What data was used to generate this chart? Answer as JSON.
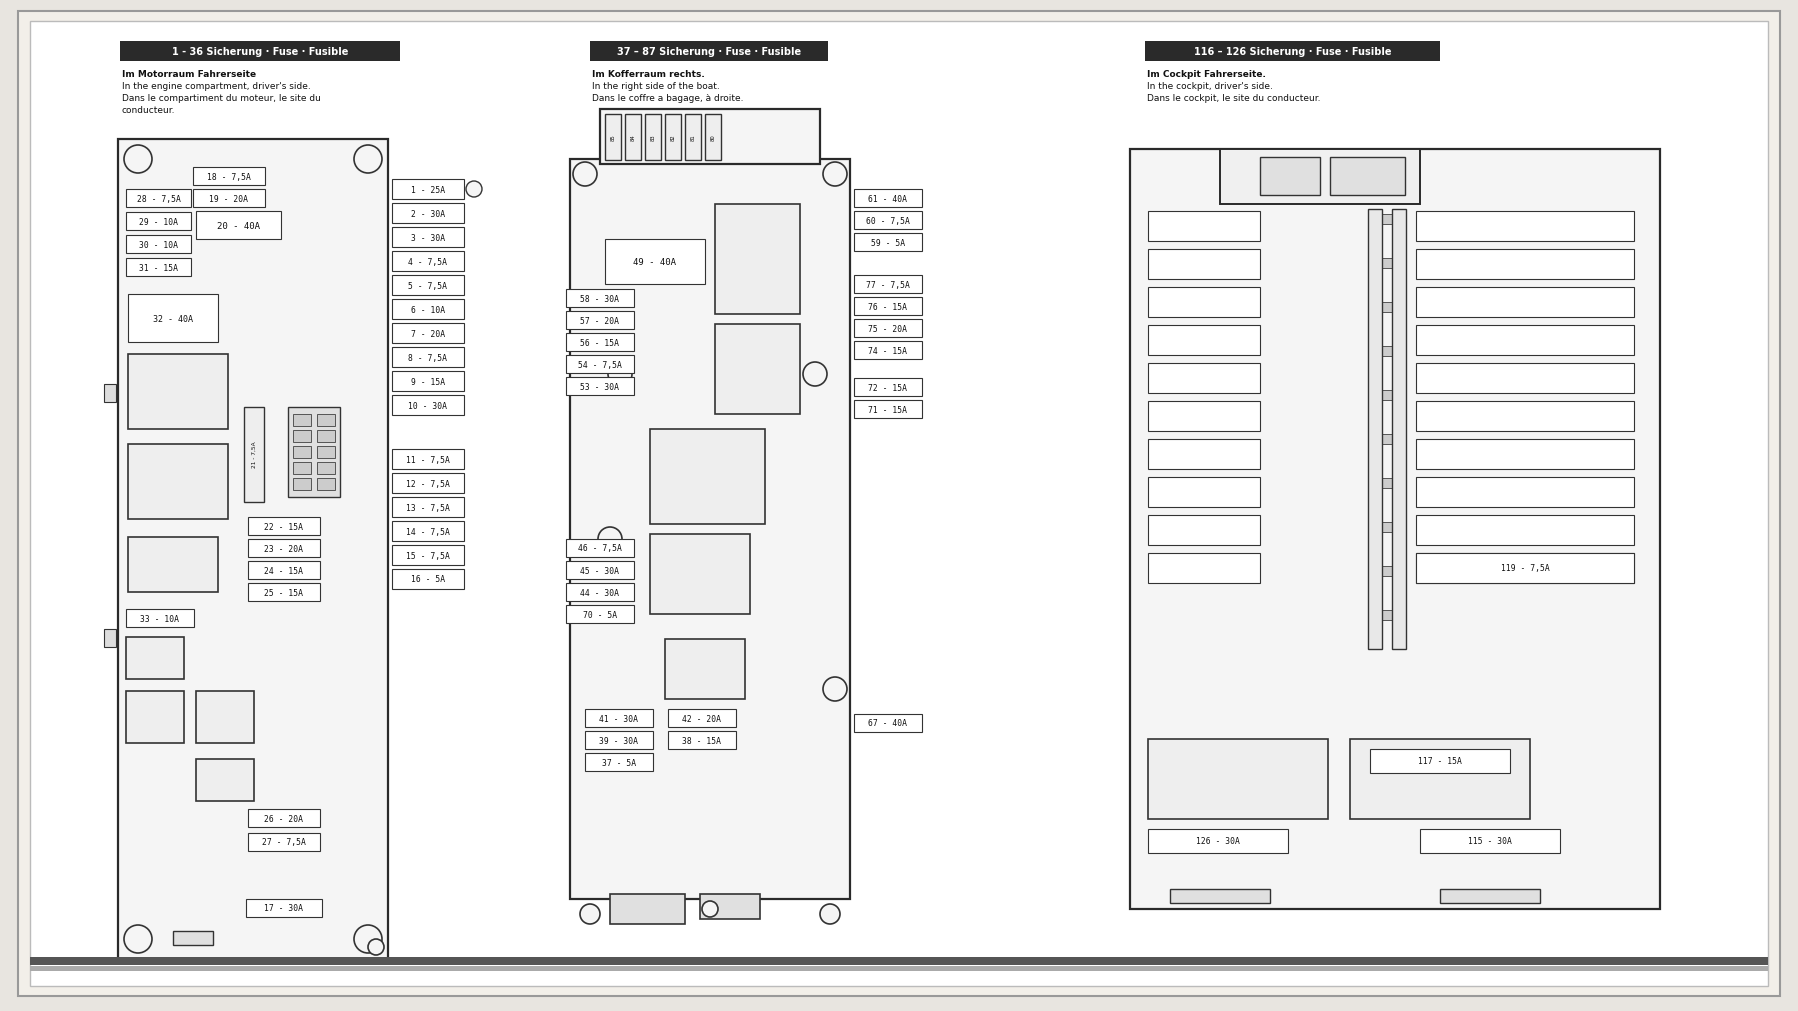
{
  "bg_outer": "#e8e5e0",
  "bg_inner": "#ffffff",
  "header_bg": "#2a2a2a",
  "header_fg": "#ffffff",
  "fuse_fc": "#ffffff",
  "fuse_ec": "#333333",
  "box_ec": "#333333",
  "relay_fc": "#f0f0f0",
  "s1_header": "1 - 36 Sicherung · Fuse · Fusible",
  "s2_header": "37 – 87 Sicherung · Fuse · Fusible",
  "s3_header": "116 – 126 Sicherung · Fuse · Fusible",
  "s1_line1": "Im Motorraum Fahrerseite",
  "s1_line2": "In the engine compartment, driver's side.",
  "s1_line3": "Dans le compartiment du moteur, le site du",
  "s1_line4": "conducteur.",
  "s2_line1": "Im Kofferraum rechts.",
  "s2_line2": "In the right side of the boat.",
  "s2_line3": "Dans le coffre a bagage, à droite.",
  "s3_line1": "Im Cockpit Fahrerseite.",
  "s3_line2": "In the cockpit, driver's side.",
  "s3_line3": "Dans le cockpit, le site du conducteur.",
  "s1_right_fuses": [
    "1 - 25A",
    "2 - 30A",
    "3 - 30A",
    "4 - 7,5A",
    "5 - 7,5A",
    "6 - 10A",
    "7 - 20A",
    "8 - 7,5A",
    "9 - 15A",
    "10 - 30A"
  ],
  "s1_bot_right_fuses": [
    "11 - 7,5A",
    "12 - 7,5A",
    "13 - 7,5A",
    "14 - 7,5A",
    "15 - 7,5A",
    "16 - 5A"
  ],
  "s1_top_fuses": [
    "18 - 7,5A",
    "19 - 20A"
  ],
  "s1_big_relay": "20 - 40A",
  "s1_left_fuses": [
    "28 - 7,5A",
    "29 - 10A",
    "30 - 10A",
    "31 - 15A"
  ],
  "s1_relay32": "32 - 40A",
  "s1_mid_fuses": [
    "22 - 15A",
    "23 - 20A",
    "24 - 15A",
    "25 - 15A"
  ],
  "s1_relay33": "33 - 10A",
  "s1_bot_mid_fuses": [
    "26 - 20A",
    "27 - 7,5A"
  ],
  "s1_fuse17": "17 - 30A",
  "s2_right_top": [
    "61 - 40A",
    "60 - 7,5A",
    "59 - 5A"
  ],
  "s2_relay49": "49 - 40A",
  "s2_left_fuses": [
    "58 - 30A",
    "57 - 20A",
    "56 - 15A",
    "54 - 7,5A",
    "53 - 30A"
  ],
  "s2_right_mid": [
    "77 - 7,5A",
    "76 - 15A",
    "75 - 20A",
    "74 - 15A"
  ],
  "s2_lower_mid": [
    "46 - 7,5A",
    "45 - 30A",
    "44 - 30A",
    "70 - 5A"
  ],
  "s2_right_lower": [
    "72 - 15A",
    "71 - 15A"
  ],
  "s2_bot_left": [
    "41 - 30A",
    "39 - 30A",
    "37 - 5A"
  ],
  "s2_bot_mid": [
    "42 - 20A",
    "38 - 15A"
  ],
  "s2_fuse67": "67 - 40A",
  "s3_left_fuses": [
    "",
    "",
    "",
    "",
    "",
    "",
    "",
    "",
    "",
    "",
    "",
    ""
  ],
  "s3_right_fuses": [
    "",
    "",
    "",
    "",
    "",
    "",
    "",
    "",
    "",
    "",
    "",
    ""
  ],
  "s3_fuse119": "119 - 7,5A",
  "s3_fuse117": "117 - 15A",
  "s3_fuse126": "126 - 30A",
  "s3_fuse115": "115 - 30A"
}
